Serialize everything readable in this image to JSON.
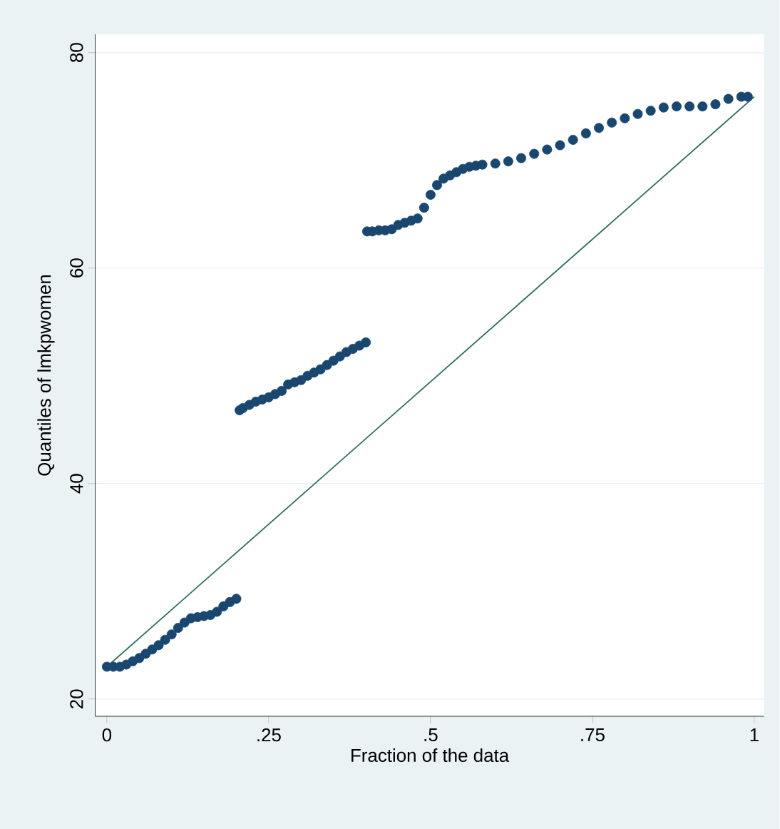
{
  "chart_data": {
    "type": "scatter",
    "xlabel": "Fraction of the data",
    "ylabel": "Quantiles of lmkpwomen",
    "xlim": [
      -0.018,
      1.015
    ],
    "ylim": [
      18.4,
      81.7
    ],
    "xticks": [
      0,
      {
        "value": 0.25,
        "label": ".25"
      },
      {
        "value": 0.5,
        "label": ".5"
      },
      {
        "value": 0.75,
        "label": ".75"
      },
      1
    ],
    "yticks": [
      20,
      40,
      60,
      80
    ],
    "grid": "y",
    "marker": "circle",
    "series": [
      {
        "color": "#1a476f",
        "x": [
          0,
          0.01,
          0.02,
          0.03,
          0.04,
          0.05,
          0.06,
          0.07,
          0.08,
          0.09,
          0.1,
          0.11,
          0.12,
          0.13,
          0.14,
          0.15,
          0.16,
          0.17,
          0.18,
          0.19,
          0.2,
          0.205,
          0.21,
          0.22,
          0.23,
          0.24,
          0.25,
          0.26,
          0.27,
          0.28,
          0.29,
          0.3,
          0.31,
          0.32,
          0.33,
          0.34,
          0.35,
          0.36,
          0.37,
          0.38,
          0.39,
          0.4,
          0.402,
          0.41,
          0.42,
          0.43,
          0.44,
          0.45,
          0.46,
          0.47,
          0.48,
          0.49,
          0.5,
          0.51,
          0.52,
          0.53,
          0.54,
          0.55,
          0.56,
          0.57,
          0.58,
          0.6,
          0.62,
          0.64,
          0.66,
          0.68,
          0.7,
          0.72,
          0.74,
          0.76,
          0.78,
          0.8,
          0.82,
          0.84,
          0.86,
          0.88,
          0.9,
          0.92,
          0.94,
          0.96,
          0.98,
          0.99
        ],
        "values": [
          23,
          23,
          23,
          23.2,
          23.5,
          23.8,
          24.2,
          24.6,
          25,
          25.5,
          26,
          26.6,
          27.1,
          27.5,
          27.6,
          27.7,
          27.8,
          28.1,
          28.6,
          29,
          29.3,
          46.8,
          47,
          47.3,
          47.6,
          47.8,
          48,
          48.3,
          48.6,
          49.2,
          49.4,
          49.6,
          50,
          50.3,
          50.6,
          51,
          51.4,
          51.8,
          52.2,
          52.5,
          52.8,
          53.1,
          63.4,
          63.4,
          63.5,
          63.5,
          63.6,
          64,
          64.2,
          64.4,
          64.6,
          65.6,
          66.8,
          67.7,
          68.3,
          68.6,
          68.9,
          69.2,
          69.4,
          69.5,
          69.6,
          69.7,
          69.9,
          70.2,
          70.6,
          71,
          71.4,
          71.9,
          72.5,
          73,
          73.5,
          73.9,
          74.3,
          74.6,
          74.9,
          75,
          75,
          75,
          75.2,
          75.7,
          75.9,
          75.9
        ]
      },
      {
        "type": "line",
        "color": "#2d6e5e",
        "marker": "none",
        "line_style": "solid",
        "x": [
          0,
          1
        ],
        "values": [
          23,
          75.9
        ]
      }
    ]
  }
}
